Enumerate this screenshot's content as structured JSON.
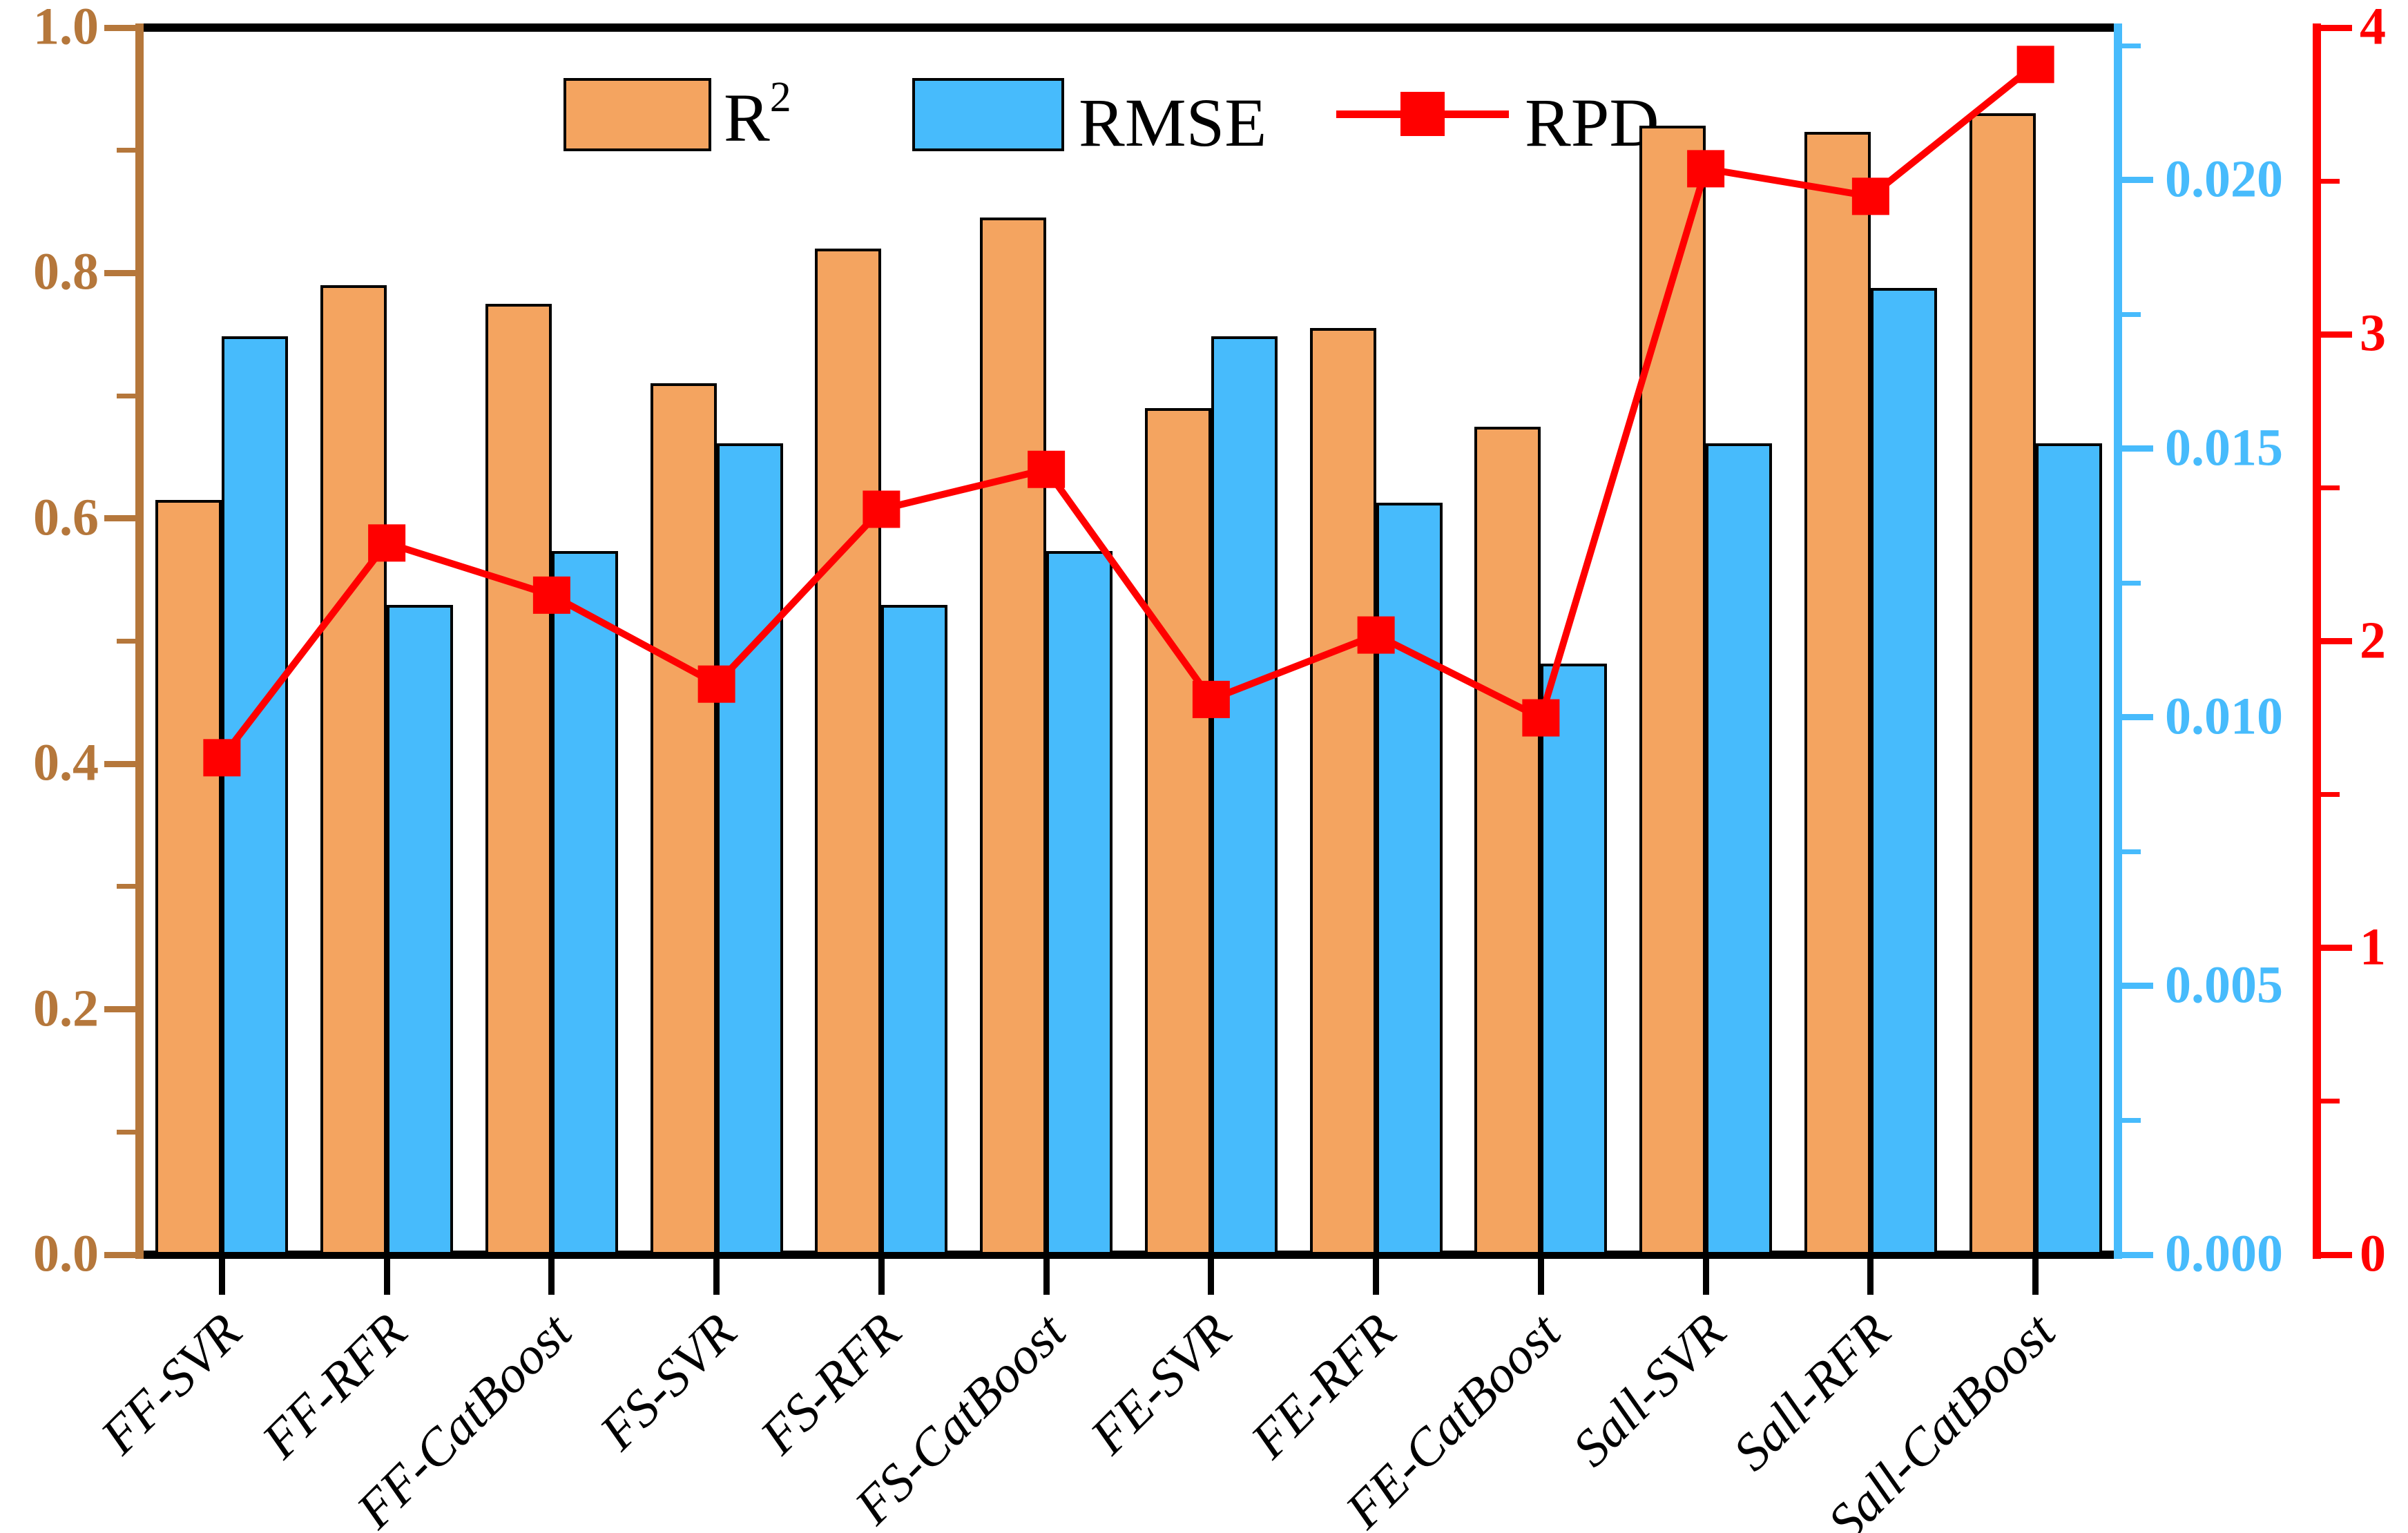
{
  "figure": {
    "background": "#FFFFFF"
  },
  "legend": {
    "items": [
      {
        "name": "r2",
        "label_base": "R",
        "label_sup": "2",
        "swatch_color": "#F4A460"
      },
      {
        "name": "rmse",
        "label_base": "RMSE",
        "label_sup": "",
        "swatch_color": "#47BBFC"
      },
      {
        "name": "rpd",
        "label_base": "RPD",
        "label_sup": "",
        "marker_color": "#FF0000"
      }
    ]
  },
  "chart_data": {
    "type": "combo-bar-line",
    "categories": [
      "FF-SVR",
      "FF-RFR",
      "FF-CatBoost",
      "FS-SVR",
      "FS-RFR",
      "FS-CatBoost",
      "FE-SVR",
      "FE-RFR",
      "FE-CatBoost",
      "Sall-SVR",
      "Sall-RFR",
      "Sall-CatBoost"
    ],
    "series": [
      {
        "name": "R2",
        "type": "bar",
        "axis": "left",
        "color": "#F4A460",
        "values": [
          0.615,
          0.79,
          0.775,
          0.71,
          0.82,
          0.845,
          0.69,
          0.755,
          0.675,
          0.92,
          0.915,
          0.93
        ]
      },
      {
        "name": "RMSE",
        "type": "bar",
        "axis": "right_inner",
        "color": "#47BBFC",
        "values": [
          0.0171,
          0.0121,
          0.0131,
          0.0151,
          0.0121,
          0.0131,
          0.0171,
          0.014,
          0.011,
          0.0151,
          0.018,
          0.0151
        ]
      },
      {
        "name": "RPD",
        "type": "line",
        "axis": "right_outer",
        "color": "#FF0000",
        "values": [
          1.62,
          2.32,
          2.15,
          1.86,
          2.43,
          2.56,
          1.81,
          2.02,
          1.75,
          3.54,
          3.45,
          3.88
        ]
      }
    ],
    "axes": {
      "left": {
        "color": "#B5773B",
        "min": 0,
        "max": 1.0,
        "major_ticks": [
          0.0,
          0.2,
          0.4,
          0.6,
          0.8,
          1.0
        ],
        "major_labels": [
          "0.0",
          "0.2",
          "0.4",
          "0.6",
          "0.8",
          "1.0"
        ],
        "minor_ticks": [
          0.1,
          0.3,
          0.5,
          0.7,
          0.9
        ]
      },
      "right_inner": {
        "color": "#47BBFC",
        "min": 0,
        "max": 0.02284,
        "major_ticks": [
          0.0,
          0.005,
          0.01,
          0.015,
          0.02
        ],
        "major_labels": [
          "0.000",
          "0.005",
          "0.010",
          "0.015",
          "0.020"
        ],
        "minor_ticks": [
          0.0025,
          0.0075,
          0.0125,
          0.0175,
          0.0225
        ]
      },
      "right_outer": {
        "color": "#FF0000",
        "min": 0,
        "max": 4,
        "major_ticks": [
          0,
          1,
          2,
          3,
          4
        ],
        "major_labels": [
          "0",
          "1",
          "2",
          "3",
          "4"
        ],
        "minor_ticks": [
          0.5,
          1.5,
          2.5,
          3.5
        ]
      },
      "bottom": {
        "color": "#000000"
      }
    },
    "grid": false,
    "legend_position": "top-center"
  }
}
